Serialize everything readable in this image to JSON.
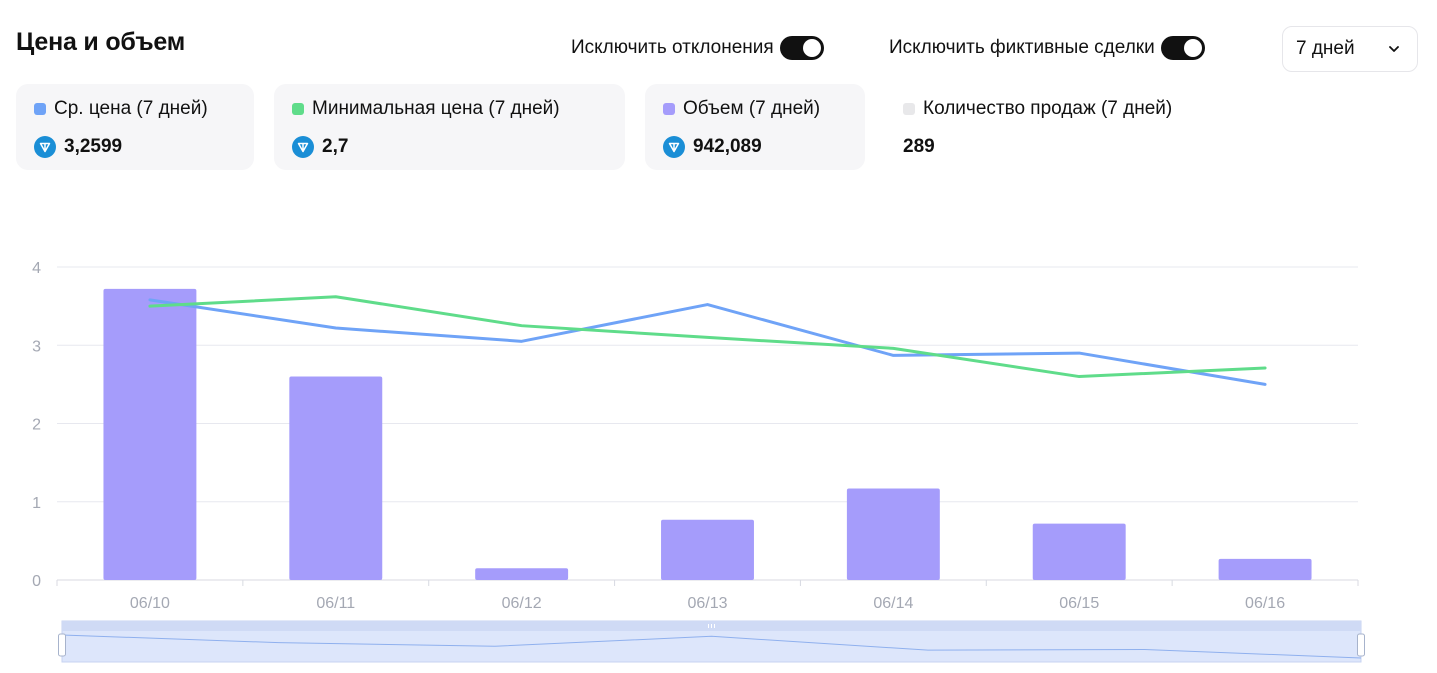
{
  "header": {
    "title": "Цена и объем",
    "toggle_outliers_label": "Исключить отклонения",
    "toggle_outliers_on": true,
    "toggle_wash_label": "Исключить фиктивные сделки",
    "toggle_wash_on": true,
    "period_value": "7 дней"
  },
  "stats": [
    {
      "label": "Ср. цена (7 дней)",
      "value": "3,2599",
      "color": "#6fa3f7",
      "icon": "ton-coin-icon"
    },
    {
      "label": "Минимальная цена (7 дней)",
      "value": "2,7",
      "color": "#5fdc8a",
      "icon": "ton-coin-icon"
    },
    {
      "label": "Объем (7 дней)",
      "value": "942,089",
      "color": "#a59cfb",
      "icon": "ton-coin-icon"
    },
    {
      "label": "Количество продаж (7 дней)",
      "value": "289",
      "color": "#e8e8ea"
    }
  ],
  "chart_data": {
    "type": "bar",
    "categories": [
      "06/10",
      "06/11",
      "06/12",
      "06/13",
      "06/14",
      "06/15",
      "06/16"
    ],
    "ylim": [
      0,
      4
    ],
    "yticks": [
      "0",
      "1",
      "2",
      "3",
      "4"
    ],
    "grid": true,
    "series": [
      {
        "name": "Объем (7 дней)",
        "type": "bar",
        "color": "#a59cfb",
        "values": [
          3.72,
          2.6,
          0.15,
          0.77,
          1.17,
          0.72,
          0.27
        ]
      },
      {
        "name": "Ср. цена (7 дней)",
        "type": "line",
        "color": "#6fa3f7",
        "values": [
          3.58,
          3.22,
          3.05,
          3.52,
          2.87,
          2.9,
          2.5
        ]
      },
      {
        "name": "Минимальная цена (7 дней)",
        "type": "line",
        "color": "#5fdc8a",
        "values": [
          3.5,
          3.62,
          3.25,
          3.1,
          2.96,
          2.6,
          2.71
        ]
      }
    ]
  }
}
